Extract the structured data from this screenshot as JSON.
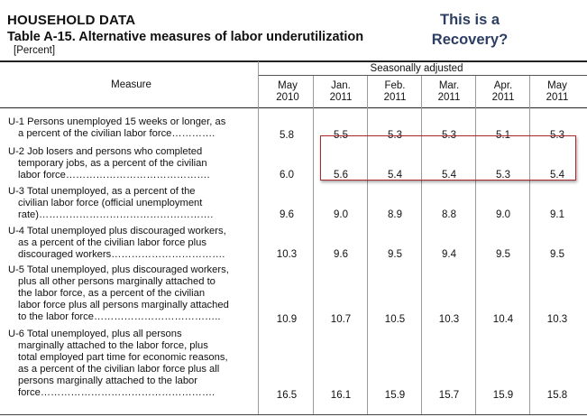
{
  "header": {
    "section": "HOUSEHOLD DATA",
    "title": "Table A-15. Alternative measures of labor underutilization",
    "unit": "[Percent]"
  },
  "annotation": {
    "line1": "This is a",
    "line2": "Recovery?",
    "color": "#2d3e63",
    "box_color": "#a8282e"
  },
  "table": {
    "group_header": "Seasonally adjusted",
    "measure_header": "Measure",
    "columns": [
      {
        "month": "May",
        "year": "2010"
      },
      {
        "month": "Jan.",
        "year": "2011"
      },
      {
        "month": "Feb.",
        "year": "2011"
      },
      {
        "month": "Mar.",
        "year": "2011"
      },
      {
        "month": "Apr.",
        "year": "2011"
      },
      {
        "month": "May",
        "year": "2011"
      }
    ],
    "rows": [
      {
        "lines": [
          "U-1 Persons unemployed 15 weeks or longer, as",
          "a percent of the civilian labor force…………."
        ],
        "values": [
          "5.8",
          "5.5",
          "5.3",
          "5.3",
          "5.1",
          "5.3"
        ]
      },
      {
        "lines": [
          "U-2 Job losers and persons who completed",
          "temporary jobs, as a percent of the civilian",
          "labor force……………………………………."
        ],
        "values": [
          "6.0",
          "5.6",
          "5.4",
          "5.4",
          "5.3",
          "5.4"
        ]
      },
      {
        "lines": [
          "U-3 Total unemployed, as a percent of the",
          "civilian labor force (official unemployment",
          "rate)……………………………………………."
        ],
        "values": [
          "9.6",
          "9.0",
          "8.9",
          "8.8",
          "9.0",
          "9.1"
        ]
      },
      {
        "lines": [
          "U-4 Total unemployed plus discouraged workers,",
          "as a percent of the civilian labor force plus",
          "discouraged workers……………………………."
        ],
        "values": [
          "10.3",
          "9.6",
          "9.5",
          "9.4",
          "9.5",
          "9.5"
        ]
      },
      {
        "lines": [
          "U-5 Total unemployed, plus discouraged workers,",
          "plus all other persons marginally attached to",
          "the labor force, as a percent of the civilian",
          "labor force plus all persons marginally attached",
          "to the labor force……………………………….."
        ],
        "values": [
          "10.9",
          "10.7",
          "10.5",
          "10.3",
          "10.4",
          "10.3"
        ]
      },
      {
        "lines": [
          "U-6 Total unemployed, plus all persons",
          "marginally attached to the labor force, plus",
          "total employed part time for economic reasons,",
          "as a percent of the civilian labor force plus all",
          "persons marginally attached to the labor",
          "force……………………………………………."
        ],
        "values": [
          "16.5",
          "16.1",
          "15.9",
          "15.7",
          "15.9",
          "15.8"
        ]
      }
    ]
  }
}
